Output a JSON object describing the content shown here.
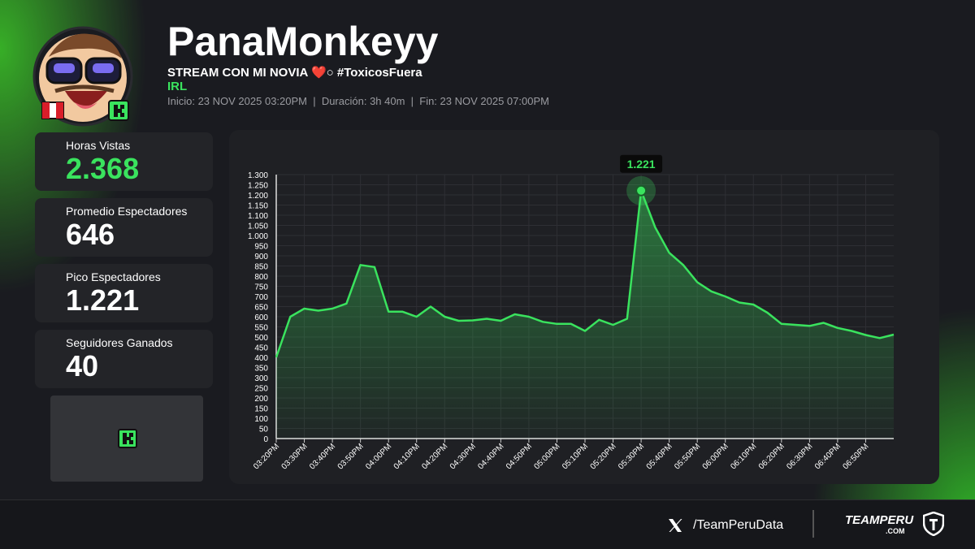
{
  "header": {
    "channel": "PanaMonkeyy",
    "title": "STREAM CON MI NOVIA ❤️○ #ToxicosFuera",
    "category": "IRL",
    "info": "Inicio: 23 NOV 2025 03:20PM  |  Duración: 3h 40m  |  Fin: 23 NOV 2025 07:00PM"
  },
  "stats": [
    {
      "label": "Horas Vistas",
      "value": "2.368"
    },
    {
      "label": "Promedio Espectadores",
      "value": "646"
    },
    {
      "label": "Pico Espectadores",
      "value": "1.221"
    },
    {
      "label": "Seguidores Ganados",
      "value": "40"
    }
  ],
  "footer": {
    "handle": "/TeamPeruData",
    "brand": "TEAMPERU",
    "brand_sub": ".COM"
  },
  "chart_data": {
    "type": "area",
    "color": "#3ae35e",
    "grid": true,
    "categories": [
      "03:20PM",
      null,
      "03:30PM",
      null,
      "03:40PM",
      null,
      "03:50PM",
      null,
      "04:00PM",
      null,
      "04:10PM",
      null,
      "04:20PM",
      null,
      "04:30PM",
      null,
      "04:40PM",
      null,
      "04:50PM",
      null,
      "05:00PM",
      null,
      "05:10PM",
      null,
      "05:20PM",
      null,
      "05:30PM",
      null,
      "05:40PM",
      null,
      "05:50PM",
      null,
      "06:00PM",
      null,
      "06:10PM",
      null,
      "06:20PM",
      null,
      "06:30PM",
      null,
      "06:40PM",
      null,
      "06:50PM",
      null,
      null
    ],
    "values": [
      400,
      600,
      640,
      630,
      640,
      665,
      855,
      845,
      625,
      625,
      600,
      650,
      600,
      580,
      582,
      590,
      580,
      612,
      600,
      575,
      565,
      565,
      530,
      585,
      560,
      590,
      1221,
      1040,
      915,
      855,
      770,
      725,
      700,
      670,
      660,
      620,
      565,
      560,
      555,
      570,
      545,
      530,
      510,
      495,
      512
    ],
    "value_labels": [
      null,
      null,
      null,
      null,
      null,
      null,
      null,
      null,
      null,
      null,
      null,
      null,
      null,
      null,
      null,
      null,
      null,
      null,
      null,
      null,
      null,
      null,
      null,
      null,
      null,
      null,
      "1.221",
      null,
      null,
      null,
      null,
      null,
      null,
      null,
      null,
      null,
      null,
      null,
      null,
      null,
      null,
      null,
      null,
      null,
      null
    ],
    "ylim": [
      0,
      1300
    ],
    "yticks": [
      0,
      50,
      100,
      150,
      200,
      250,
      300,
      350,
      400,
      450,
      500,
      550,
      600,
      650,
      700,
      750,
      800,
      850,
      900,
      950,
      {
        "value": 1000,
        "label": "1.000"
      },
      {
        "value": 1050,
        "label": "1.050"
      },
      {
        "value": 1100,
        "label": "1.100"
      },
      {
        "value": 1150,
        "label": "1.150"
      },
      {
        "value": 1200,
        "label": "1.200"
      },
      {
        "value": 1250,
        "label": "1.250"
      },
      {
        "value": 1300,
        "label": "1.300"
      }
    ]
  }
}
